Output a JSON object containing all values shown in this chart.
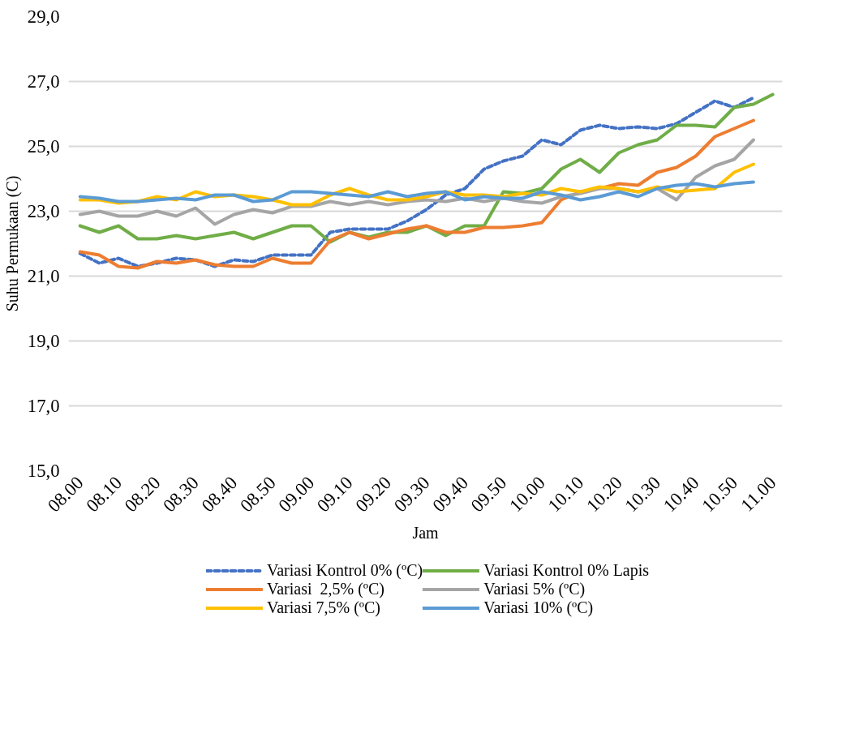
{
  "chart_data": {
    "type": "line",
    "xlabel": "Jam",
    "ylabel": "Suhu Permukaan (C)",
    "categories": [
      "08.00",
      null,
      "08.10",
      null,
      "08.20",
      null,
      "08.30",
      null,
      "08.40",
      null,
      "08.50",
      null,
      "09.00",
      null,
      "09.10",
      null,
      "09.20",
      null,
      "09.30",
      null,
      "09.40",
      null,
      "09.50",
      null,
      "10.00",
      null,
      "10.10",
      null,
      "10.20",
      null,
      "10.30",
      null,
      "10.40",
      null,
      "10.50",
      null,
      "11.00"
    ],
    "ylim": [
      15,
      29
    ],
    "yticks": [
      {
        "value": 15,
        "label": "15,0"
      },
      {
        "value": 17,
        "label": "17,0"
      },
      {
        "value": 19,
        "label": "19,0"
      },
      {
        "value": 21,
        "label": "21,0"
      },
      {
        "value": 23,
        "label": "23,0"
      },
      {
        "value": 25,
        "label": "25,0"
      },
      {
        "value": 27,
        "label": "27,0"
      },
      {
        "value": 29,
        "label": "29,0"
      }
    ],
    "grid": "y",
    "legend": "bottom",
    "marker": "none",
    "series": [
      {
        "name": "Variasi Kontrol 0% (ºC)",
        "color": "#4472c4",
        "line_style": "dashed",
        "values": [
          21.7,
          21.4,
          21.55,
          21.3,
          21.4,
          21.55,
          21.5,
          21.3,
          21.5,
          21.45,
          21.65,
          21.65,
          21.65,
          22.35,
          22.45,
          22.45,
          22.45,
          22.7,
          23.05,
          23.5,
          23.7,
          24.3,
          24.55,
          24.7,
          25.2,
          25.05,
          25.5,
          25.65,
          25.55,
          25.6,
          25.55,
          25.7,
          26.05,
          26.4,
          26.2,
          26.5,
          null
        ]
      },
      {
        "name": "Variasi Kontrol 0% Lapis",
        "color": "#70ad47",
        "line_style": "solid",
        "values": [
          22.55,
          22.35,
          22.55,
          22.15,
          22.15,
          22.25,
          22.15,
          22.25,
          22.35,
          22.15,
          22.35,
          22.55,
          22.55,
          22.05,
          22.35,
          22.2,
          22.35,
          22.35,
          22.55,
          22.25,
          22.55,
          22.55,
          23.6,
          23.55,
          23.7,
          24.3,
          24.6,
          24.2,
          24.8,
          25.05,
          25.2,
          25.65,
          25.65,
          25.6,
          26.2,
          26.3,
          26.6
        ]
      },
      {
        "name": "Variasi  2,5% (ºC)",
        "color": "#ed7d31",
        "line_style": "solid",
        "values": [
          21.75,
          21.65,
          21.3,
          21.25,
          21.45,
          21.4,
          21.5,
          21.35,
          21.3,
          21.3,
          21.55,
          21.4,
          21.4,
          22.1,
          22.35,
          22.15,
          22.3,
          22.45,
          22.55,
          22.35,
          22.35,
          22.5,
          22.5,
          22.55,
          22.65,
          23.35,
          23.6,
          23.7,
          23.85,
          23.8,
          24.2,
          24.35,
          24.7,
          25.3,
          25.55,
          25.8,
          null
        ]
      },
      {
        "name": "Variasi 5% (ºC)",
        "color": "#a5a5a5",
        "line_style": "solid",
        "values": [
          22.9,
          23.0,
          22.85,
          22.85,
          23.0,
          22.85,
          23.1,
          22.6,
          22.9,
          23.05,
          22.95,
          23.15,
          23.15,
          23.3,
          23.2,
          23.3,
          23.2,
          23.3,
          23.35,
          23.3,
          23.4,
          23.3,
          23.4,
          23.3,
          23.25,
          23.45,
          23.55,
          23.7,
          23.7,
          23.6,
          23.7,
          23.35,
          24.05,
          24.4,
          24.6,
          25.2,
          null
        ]
      },
      {
        "name": "Variasi 7,5% (ºC)",
        "color": "#ffc000",
        "line_style": "solid",
        "values": [
          23.35,
          23.35,
          23.25,
          23.3,
          23.45,
          23.35,
          23.6,
          23.45,
          23.5,
          23.45,
          23.35,
          23.2,
          23.2,
          23.5,
          23.7,
          23.5,
          23.35,
          23.35,
          23.45,
          23.6,
          23.5,
          23.5,
          23.45,
          23.55,
          23.5,
          23.7,
          23.6,
          23.75,
          23.7,
          23.6,
          23.75,
          23.6,
          23.65,
          23.7,
          24.2,
          24.45,
          null
        ]
      },
      {
        "name": "Variasi 10% (ºC)",
        "color": "#5b9bd5",
        "line_style": "solid",
        "values": [
          23.45,
          23.4,
          23.3,
          23.3,
          23.35,
          23.4,
          23.35,
          23.5,
          23.5,
          23.3,
          23.35,
          23.6,
          23.6,
          23.55,
          23.5,
          23.45,
          23.6,
          23.45,
          23.55,
          23.6,
          23.35,
          23.45,
          23.4,
          23.4,
          23.6,
          23.5,
          23.35,
          23.45,
          23.6,
          23.45,
          23.7,
          23.8,
          23.85,
          23.75,
          23.85,
          23.9,
          null
        ]
      }
    ]
  }
}
